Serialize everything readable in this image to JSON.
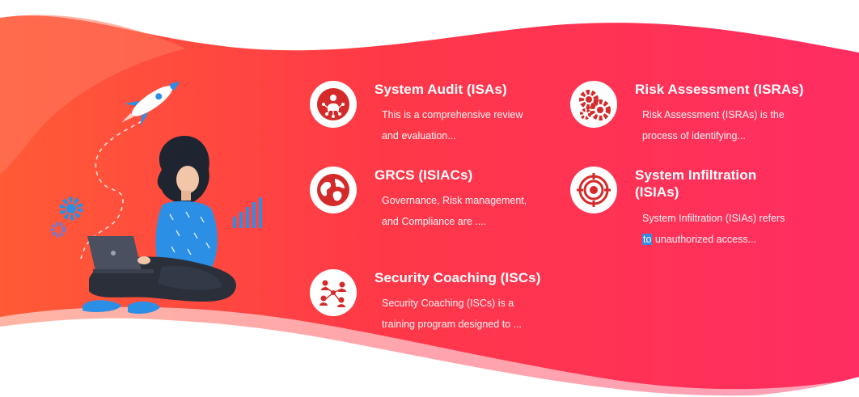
{
  "colors": {
    "gradient_start": "#ff5a3a",
    "gradient_mid": "#ff3447",
    "gradient_end": "#ff2e63",
    "icon_red": "#d42a2a",
    "shirt_blue": "#2b8fe6",
    "pants_dark": "#2a2f3a"
  },
  "services": [
    {
      "title": "System Audit (ISAs)",
      "desc_line1": "This is a comprehensive review",
      "desc_line2": "and evaluation...",
      "icon": "network-person-icon"
    },
    {
      "title": "Risk Assessment (ISRAs)",
      "desc_line1": "Risk Assessment (ISRAs) is the",
      "desc_line2": "process of identifying...",
      "icon": "gears-icon"
    },
    {
      "title": "GRCS (ISIACs)",
      "desc_line1": "Governance, Risk management,",
      "desc_line2": "and Compliance are ....",
      "icon": "globe-icon"
    },
    {
      "title": "System Infiltration (ISIAs)",
      "desc_line1": "System Infiltration (ISIAs) refers",
      "desc_line2_highlight": "to",
      "desc_line2_rest": " unauthorized access...",
      "icon": "target-icon"
    },
    {
      "title": "Security Coaching (ISCs)",
      "desc_line1": "Security Coaching (ISCs) is a",
      "desc_line2": "training program designed to ...",
      "icon": "people-network-icon"
    }
  ],
  "illustration": {
    "icons": [
      "rocket-icon",
      "gear-icon",
      "bar-chart-icon",
      "laptop-icon"
    ]
  }
}
